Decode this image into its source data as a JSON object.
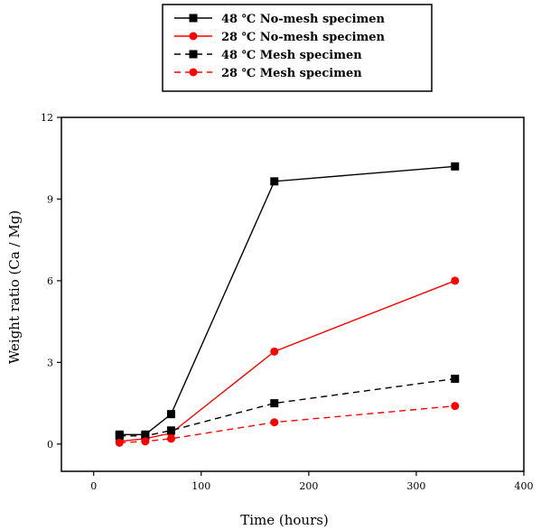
{
  "chart_data": {
    "type": "line",
    "title": "",
    "xlabel": "Time (hours)",
    "ylabel": "Weight ratio (Ca / Mg)",
    "xlim": [
      -30,
      400
    ],
    "ylim": [
      -1,
      12
    ],
    "xticks": [
      0,
      100,
      200,
      300,
      400
    ],
    "yticks": [
      0,
      3,
      6,
      9,
      12
    ],
    "x": [
      24,
      48,
      72,
      168,
      336
    ],
    "grid": false,
    "legend_position": "top-center",
    "series": [
      {
        "name": "48 ℃  No-mesh specimen",
        "values": [
          0.35,
          0.35,
          1.1,
          9.65,
          10.2
        ],
        "color": "#000000",
        "dashed": false,
        "marker": "square"
      },
      {
        "name": "28 ℃  No-mesh specimen",
        "values": [
          0.1,
          0.2,
          0.4,
          3.4,
          6.0
        ],
        "color": "#ff0000",
        "dashed": false,
        "marker": "circle"
      },
      {
        "name": "48 ℃  Mesh specimen",
        "values": [
          0.3,
          0.3,
          0.5,
          1.5,
          2.4
        ],
        "color": "#000000",
        "dashed": true,
        "marker": "square"
      },
      {
        "name": "28 ℃  Mesh specimen",
        "values": [
          0.05,
          0.1,
          0.2,
          0.8,
          1.4
        ],
        "color": "#ff0000",
        "dashed": true,
        "marker": "circle"
      }
    ]
  }
}
